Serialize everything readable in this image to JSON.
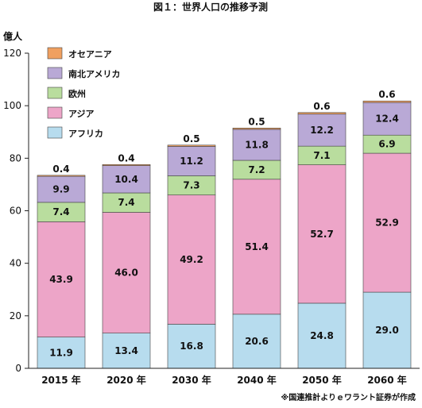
{
  "chart_data": {
    "type": "bar",
    "stacked": true,
    "title": "図１：世界人口の推移予測",
    "ylabel": "億人",
    "xlabel": "",
    "ylim": [
      0,
      120
    ],
    "yticks": [
      0,
      20,
      40,
      60,
      80,
      100,
      120
    ],
    "grid": false,
    "legend_position": "top-left",
    "categories": [
      "2015 年",
      "2020 年",
      "2030 年",
      "2040 年",
      "2050 年",
      "2060 年"
    ],
    "series": [
      {
        "name": "アフリカ",
        "color": "#b7dcee",
        "values": [
          11.9,
          13.4,
          16.8,
          20.6,
          24.8,
          29.0
        ],
        "labels": [
          "11.9",
          "13.4",
          "16.8",
          "20.6",
          "24.8",
          "29.0"
        ]
      },
      {
        "name": "アジア",
        "color": "#eda5c8",
        "values": [
          43.9,
          46.0,
          49.2,
          51.4,
          52.7,
          52.9
        ],
        "labels": [
          "43.9",
          "46.0",
          "49.2",
          "51.4",
          "52.7",
          "52.9"
        ]
      },
      {
        "name": "欧州",
        "color": "#b9dd9e",
        "values": [
          7.4,
          7.4,
          7.3,
          7.2,
          7.1,
          6.9
        ],
        "labels": [
          "7.4",
          "7.4",
          "7.3",
          "7.2",
          "7.1",
          "6.9"
        ]
      },
      {
        "name": "南北アメリカ",
        "color": "#b9a9d6",
        "values": [
          9.9,
          10.4,
          11.2,
          11.8,
          12.2,
          12.4
        ],
        "labels": [
          "9.9",
          "10.4",
          "11.2",
          "11.8",
          "12.2",
          "12.4"
        ]
      },
      {
        "name": "オセアニア",
        "color": "#f0a060",
        "values": [
          0.4,
          0.4,
          0.5,
          0.5,
          0.6,
          0.6
        ],
        "labels": [
          "0.4",
          "0.4",
          "0.5",
          "0.5",
          "0.6",
          "0.6"
        ]
      }
    ],
    "source": "※国連推計よりｅワラント証券が作成"
  }
}
